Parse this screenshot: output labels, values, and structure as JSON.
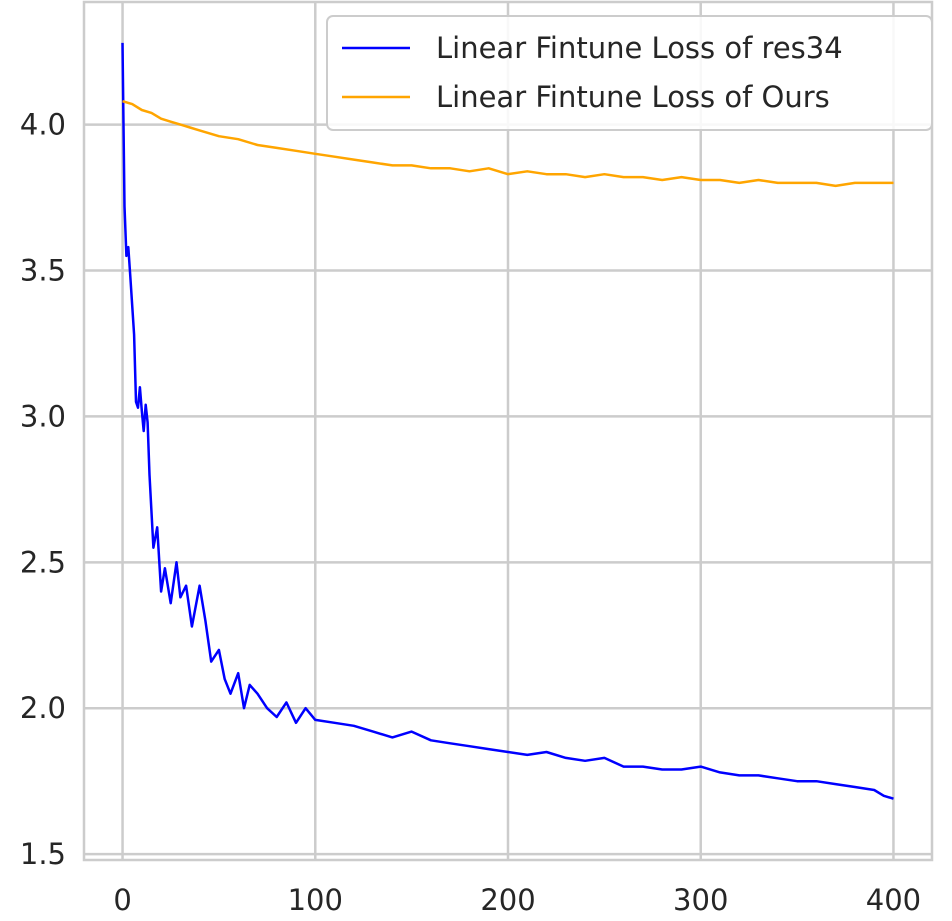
{
  "chart_data": {
    "type": "line",
    "title": "",
    "xlabel": "",
    "ylabel": "",
    "xlim": [
      -20,
      420
    ],
    "ylim": [
      1.48,
      4.42
    ],
    "grid": true,
    "legend_position": "top-right",
    "x_ticks": [
      0,
      100,
      200,
      300,
      400
    ],
    "x_tick_labels": [
      "0",
      "100",
      "200",
      "300",
      "400"
    ],
    "y_ticks": [
      1.5,
      2.0,
      2.5,
      3.0,
      3.5,
      4.0
    ],
    "y_tick_labels": [
      "1.5",
      "2.0",
      "2.5",
      "3.0",
      "3.5",
      "4.0"
    ],
    "series": [
      {
        "name": "Linear Fintune Loss of res34",
        "color": "#0000ff",
        "x": [
          0,
          1,
          2,
          3,
          4,
          5,
          6,
          7,
          8,
          9,
          10,
          11,
          12,
          13,
          14,
          16,
          18,
          20,
          22,
          25,
          28,
          30,
          33,
          36,
          40,
          43,
          46,
          50,
          53,
          56,
          60,
          63,
          66,
          70,
          75,
          80,
          85,
          90,
          95,
          100,
          110,
          120,
          130,
          140,
          150,
          160,
          170,
          180,
          190,
          200,
          210,
          220,
          230,
          240,
          250,
          260,
          270,
          280,
          290,
          300,
          310,
          320,
          330,
          340,
          350,
          360,
          370,
          380,
          390,
          395,
          400
        ],
        "y": [
          4.28,
          3.72,
          3.55,
          3.58,
          3.48,
          3.38,
          3.28,
          3.05,
          3.03,
          3.1,
          3.02,
          2.95,
          3.04,
          2.98,
          2.8,
          2.55,
          2.62,
          2.4,
          2.48,
          2.36,
          2.5,
          2.38,
          2.42,
          2.28,
          2.42,
          2.3,
          2.16,
          2.2,
          2.1,
          2.05,
          2.12,
          2.0,
          2.08,
          2.05,
          2.0,
          1.97,
          2.02,
          1.95,
          2.0,
          1.96,
          1.95,
          1.94,
          1.92,
          1.9,
          1.92,
          1.89,
          1.88,
          1.87,
          1.86,
          1.85,
          1.84,
          1.85,
          1.83,
          1.82,
          1.83,
          1.8,
          1.8,
          1.79,
          1.79,
          1.8,
          1.78,
          1.77,
          1.77,
          1.76,
          1.75,
          1.75,
          1.74,
          1.73,
          1.72,
          1.7,
          1.69
        ]
      },
      {
        "name": "Linear Fintune Loss of Ours",
        "color": "#ffa500",
        "x": [
          0,
          5,
          10,
          15,
          20,
          25,
          30,
          35,
          40,
          50,
          60,
          70,
          80,
          90,
          100,
          110,
          120,
          130,
          140,
          150,
          160,
          170,
          180,
          190,
          200,
          210,
          220,
          230,
          240,
          250,
          260,
          270,
          280,
          290,
          300,
          310,
          320,
          330,
          340,
          350,
          360,
          370,
          380,
          390,
          400
        ],
        "y": [
          4.08,
          4.07,
          4.05,
          4.04,
          4.02,
          4.01,
          4.0,
          3.99,
          3.98,
          3.96,
          3.95,
          3.93,
          3.92,
          3.91,
          3.9,
          3.89,
          3.88,
          3.87,
          3.86,
          3.86,
          3.85,
          3.85,
          3.84,
          3.85,
          3.83,
          3.84,
          3.83,
          3.83,
          3.82,
          3.83,
          3.82,
          3.82,
          3.81,
          3.82,
          3.81,
          3.81,
          3.8,
          3.81,
          3.8,
          3.8,
          3.8,
          3.79,
          3.8,
          3.8,
          3.8
        ]
      }
    ]
  }
}
